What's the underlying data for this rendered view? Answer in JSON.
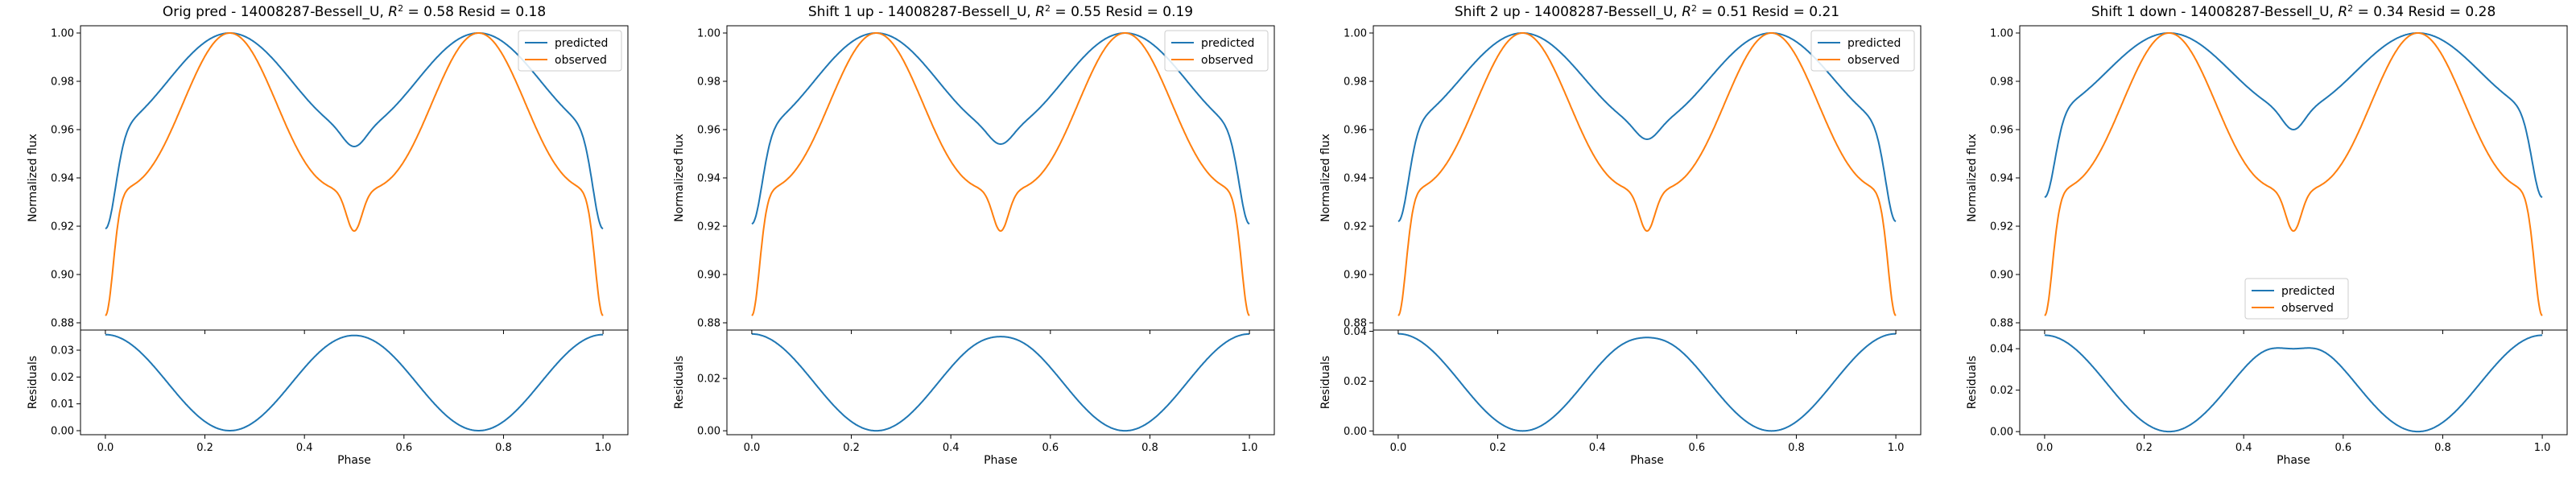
{
  "colors": {
    "predicted": "#1f77b4",
    "observed": "#ff7f0e",
    "axes": "#000000",
    "legend_border": "#cccccc"
  },
  "chart_data": [
    {
      "type": "line",
      "title": "Orig pred - 14008287-Bessell_U, R² = 0.58 Resid = 0.18",
      "title_parts": {
        "prefix": "Orig pred - 14008287-Bessell_U, ",
        "r": "R",
        "sup": "2",
        "suffix": " = 0.58 Resid = 0.18"
      },
      "legend": {
        "location": "top-right",
        "entries": [
          "predicted",
          "observed"
        ]
      },
      "top": {
        "ylabel": "Normalized flux",
        "ylim": [
          0.877,
          1.003
        ],
        "yticks": [
          0.88,
          0.9,
          0.92,
          0.94,
          0.96,
          0.98,
          1.0
        ],
        "ytick_labels": [
          "0.88",
          "0.90",
          "0.92",
          "0.94",
          "0.96",
          "0.98",
          "1.00"
        ],
        "predicted": {
          "min": 0.919,
          "dip": 0.953,
          "shoulder": 0.96
        },
        "observed": {
          "min": 0.883,
          "dip": 0.918,
          "shoulder": 0.935
        }
      },
      "bottom": {
        "ylabel": "Residuals",
        "ylim": [
          -0.0015,
          0.0375
        ],
        "yticks": [
          0.0,
          0.01,
          0.02,
          0.03
        ],
        "ytick_labels": [
          "0.00",
          "0.01",
          "0.02",
          "0.03"
        ],
        "max": 0.0358,
        "mid": 0.0355
      },
      "xlabel": "Phase",
      "xlim": [
        -0.05,
        1.05
      ],
      "xticks": [
        0.0,
        0.2,
        0.4,
        0.6,
        0.8,
        1.0
      ],
      "xtick_labels": [
        "0.0",
        "0.2",
        "0.4",
        "0.6",
        "0.8",
        "1.0"
      ]
    },
    {
      "type": "line",
      "title": "Shift 1 up - 14008287-Bessell_U, R² = 0.55 Resid = 0.19",
      "title_parts": {
        "prefix": "Shift 1 up - 14008287-Bessell_U, ",
        "r": "R",
        "sup": "2",
        "suffix": " = 0.55 Resid = 0.19"
      },
      "legend": {
        "location": "top-right",
        "entries": [
          "predicted",
          "observed"
        ]
      },
      "top": {
        "ylabel": "Normalized flux",
        "ylim": [
          0.877,
          1.003
        ],
        "yticks": [
          0.88,
          0.9,
          0.92,
          0.94,
          0.96,
          0.98,
          1.0
        ],
        "ytick_labels": [
          "0.88",
          "0.90",
          "0.92",
          "0.94",
          "0.96",
          "0.98",
          "1.00"
        ],
        "predicted": {
          "min": 0.921,
          "dip": 0.954,
          "shoulder": 0.96
        },
        "observed": {
          "min": 0.883,
          "dip": 0.918,
          "shoulder": 0.935
        }
      },
      "bottom": {
        "ylabel": "Residuals",
        "ylim": [
          -0.0015,
          0.0385
        ],
        "yticks": [
          0.0,
          0.02
        ],
        "ytick_labels": [
          "0.00",
          "0.02"
        ],
        "max": 0.037,
        "mid": 0.036
      },
      "xlabel": "Phase",
      "xlim": [
        -0.05,
        1.05
      ],
      "xticks": [
        0.0,
        0.2,
        0.4,
        0.6,
        0.8,
        1.0
      ],
      "xtick_labels": [
        "0.0",
        "0.2",
        "0.4",
        "0.6",
        "0.8",
        "1.0"
      ]
    },
    {
      "type": "line",
      "title": "Shift 2 up - 14008287-Bessell_U, R² = 0.51 Resid = 0.21",
      "title_parts": {
        "prefix": "Shift 2 up - 14008287-Bessell_U, ",
        "r": "R",
        "sup": "2",
        "suffix": " = 0.51 Resid = 0.21"
      },
      "legend": {
        "location": "top-right",
        "entries": [
          "predicted",
          "observed"
        ]
      },
      "top": {
        "ylabel": "Normalized flux",
        "ylim": [
          0.877,
          1.003
        ],
        "yticks": [
          0.88,
          0.9,
          0.92,
          0.94,
          0.96,
          0.98,
          1.0
        ],
        "ytick_labels": [
          "0.88",
          "0.90",
          "0.92",
          "0.94",
          "0.96",
          "0.98",
          "1.00"
        ],
        "predicted": {
          "min": 0.922,
          "dip": 0.956,
          "shoulder": 0.962
        },
        "observed": {
          "min": 0.883,
          "dip": 0.918,
          "shoulder": 0.935
        }
      },
      "bottom": {
        "ylabel": "Residuals",
        "ylim": [
          -0.0015,
          0.0405
        ],
        "yticks": [
          0.0,
          0.02,
          0.04
        ],
        "ytick_labels": [
          "0.00",
          "0.02",
          "0.04"
        ],
        "max": 0.039,
        "mid": 0.0375
      },
      "xlabel": "Phase",
      "xlim": [
        -0.05,
        1.05
      ],
      "xticks": [
        0.0,
        0.2,
        0.4,
        0.6,
        0.8,
        1.0
      ],
      "xtick_labels": [
        "0.0",
        "0.2",
        "0.4",
        "0.6",
        "0.8",
        "1.0"
      ]
    },
    {
      "type": "line",
      "title": "Shift 1 down - 14008287-Bessell_U, R² = 0.34 Resid = 0.28",
      "title_parts": {
        "prefix": "Shift 1 down - 14008287-Bessell_U, ",
        "r": "R",
        "sup": "2",
        "suffix": " = 0.34 Resid = 0.28"
      },
      "legend": {
        "location": "lower-center",
        "entries": [
          "predicted",
          "observed"
        ]
      },
      "top": {
        "ylabel": "Normalized flux",
        "ylim": [
          0.877,
          1.003
        ],
        "yticks": [
          0.88,
          0.9,
          0.92,
          0.94,
          0.96,
          0.98,
          1.0
        ],
        "ytick_labels": [
          "0.88",
          "0.90",
          "0.92",
          "0.94",
          "0.96",
          "0.98",
          "1.00"
        ],
        "predicted": {
          "min": 0.932,
          "dip": 0.96,
          "shoulder": 0.968
        },
        "observed": {
          "min": 0.883,
          "dip": 0.918,
          "shoulder": 0.935
        }
      },
      "bottom": {
        "ylabel": "Residuals",
        "ylim": [
          -0.0015,
          0.049
        ],
        "yticks": [
          0.0,
          0.02,
          0.04
        ],
        "ytick_labels": [
          "0.00",
          "0.02",
          "0.04"
        ],
        "max": 0.0465,
        "mid": 0.04
      },
      "xlabel": "Phase",
      "xlim": [
        -0.05,
        1.05
      ],
      "xticks": [
        0.0,
        0.2,
        0.4,
        0.6,
        0.8,
        1.0
      ],
      "xtick_labels": [
        "0.0",
        "0.2",
        "0.4",
        "0.6",
        "0.8",
        "1.0"
      ]
    }
  ]
}
